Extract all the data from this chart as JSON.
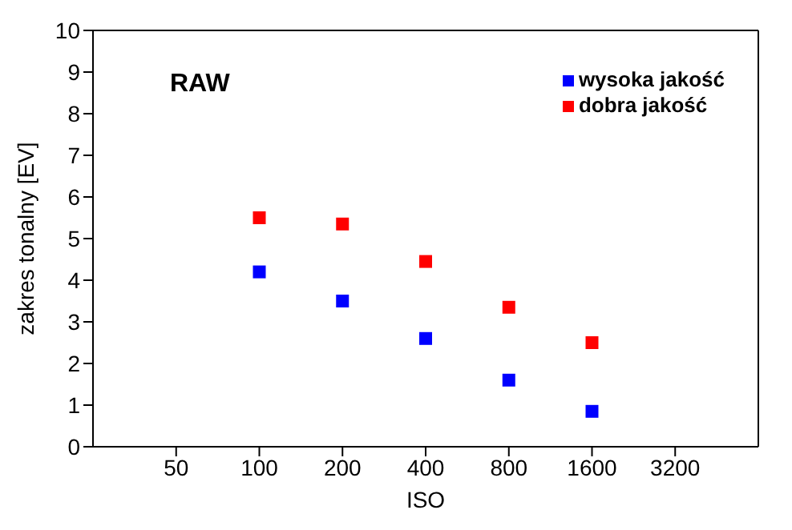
{
  "chart_data": {
    "type": "scatter",
    "xlabel": "ISO",
    "ylabel": "zakres tonalny [EV]",
    "annotations": [
      "RAW"
    ],
    "x": [
      100,
      200,
      400,
      800,
      1600
    ],
    "series": [
      {
        "name": "wysoka jakość",
        "color": "#0000ff",
        "values": [
          4.2,
          3.5,
          2.6,
          1.6,
          0.85
        ]
      },
      {
        "name": "dobra jakość",
        "color": "#ff0000",
        "values": [
          5.5,
          5.35,
          4.45,
          3.35,
          2.5
        ]
      }
    ],
    "log": "x",
    "xlim": [
      25,
      6400
    ],
    "xticks": [
      50,
      100,
      200,
      400,
      800,
      1600,
      3200
    ],
    "ylim": [
      0,
      10
    ],
    "yticks": [
      0,
      1,
      2,
      3,
      4,
      5,
      6,
      7,
      8,
      9,
      10
    ],
    "grid": false,
    "legend": "top right",
    "marker": "square"
  }
}
